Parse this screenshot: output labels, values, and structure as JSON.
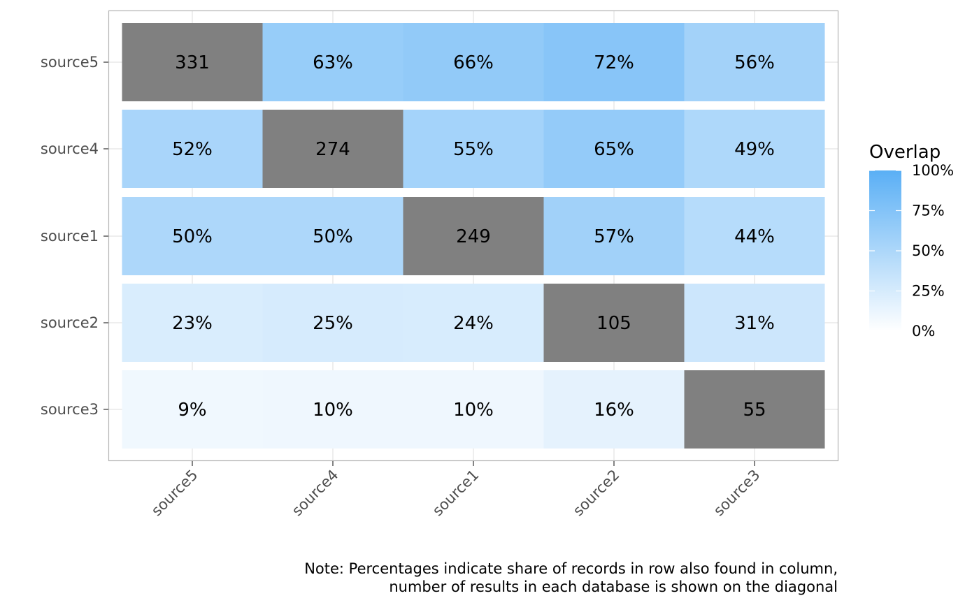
{
  "chart_data": {
    "type": "heatmap",
    "rows": [
      "source5",
      "source4",
      "source1",
      "source2",
      "source3"
    ],
    "columns": [
      "source5",
      "source4",
      "source1",
      "source2",
      "source3"
    ],
    "values": [
      [
        null,
        63,
        66,
        72,
        56
      ],
      [
        52,
        null,
        55,
        65,
        49
      ],
      [
        50,
        50,
        null,
        57,
        44
      ],
      [
        23,
        25,
        24,
        null,
        31
      ],
      [
        9,
        10,
        10,
        16,
        null
      ]
    ],
    "cell_labels": [
      [
        "331",
        "63%",
        "66%",
        "72%",
        "56%"
      ],
      [
        "52%",
        "274",
        "55%",
        "65%",
        "49%"
      ],
      [
        "50%",
        "50%",
        "249",
        "57%",
        "44%"
      ],
      [
        "23%",
        "25%",
        "24%",
        "105",
        "31%"
      ],
      [
        "9%",
        "10%",
        "10%",
        "16%",
        "55"
      ]
    ],
    "diagonal_counts": [
      331,
      274,
      249,
      105,
      55
    ],
    "legend": {
      "title": "Overlap",
      "ticks": [
        "100%",
        "75%",
        "50%",
        "25%",
        "0%"
      ],
      "range": [
        0,
        100
      ],
      "placement": "right"
    },
    "colors": {
      "low": "#ffffff",
      "high": "#5aaff5",
      "diagonal": "#808080",
      "grid": "#dedede",
      "panel_border": "#b3b3b3"
    },
    "note": [
      "Note: Percentages indicate share of records in row also found in column,",
      "number of results in each database is shown on the diagonal"
    ],
    "grid": true
  }
}
